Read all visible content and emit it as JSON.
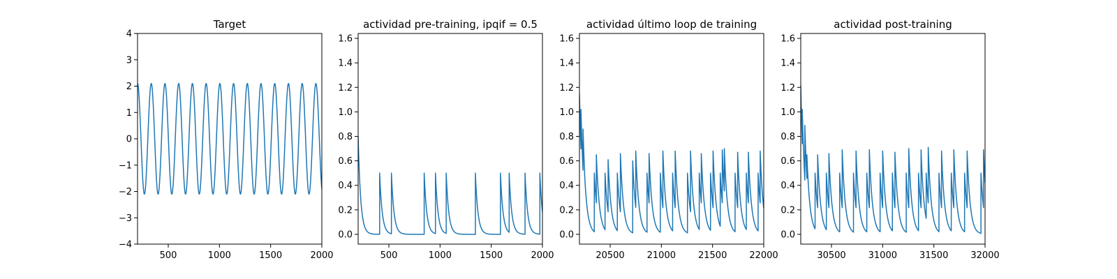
{
  "chart_data": [
    {
      "type": "line",
      "title": "Target",
      "xlim": [
        200,
        2000
      ],
      "ylim": [
        -4,
        4
      ],
      "xticks": [
        500,
        1000,
        1500,
        2000
      ],
      "xtick_labels": [
        "500",
        "1000",
        "1500",
        "2000"
      ],
      "yticks": [
        -4,
        -3,
        -2,
        -1,
        0,
        1,
        2,
        3,
        4
      ],
      "ytick_labels": [
        "−4",
        "−3",
        "−2",
        "−1",
        "0",
        "1",
        "2",
        "3",
        "4"
      ],
      "series": [
        {
          "color": "#1f77b4",
          "kind": "sine",
          "amplitude": 2.1,
          "period": 134,
          "phase_peak_x": 200,
          "x_start": 200,
          "x_end": 2000
        }
      ]
    },
    {
      "type": "line",
      "title": "actividad pre-training, ipqif = 0.5",
      "xlim": [
        200,
        2000
      ],
      "ylim": [
        -0.08,
        1.64
      ],
      "xticks": [
        500,
        1000,
        1500,
        2000
      ],
      "xtick_labels": [
        "500",
        "1000",
        "1500",
        "2000"
      ],
      "yticks": [
        0,
        0.2,
        0.4,
        0.6,
        0.8,
        1.0,
        1.2,
        1.4,
        1.6
      ],
      "ytick_labels": [
        "0.0",
        "0.2",
        "0.4",
        "0.6",
        "0.8",
        "1.0",
        "1.2",
        "1.4",
        "1.6"
      ],
      "series": [
        {
          "color": "#1f77b4",
          "kind": "spikes",
          "x_start": 200,
          "x_end": 2000,
          "initial": 0.8,
          "tau": 25,
          "events": [
            {
              "x": 410,
              "v": 0.5
            },
            {
              "x": 525,
              "v": 0.5
            },
            {
              "x": 845,
              "v": 0.5
            },
            {
              "x": 955,
              "v": 0.5
            },
            {
              "x": 1060,
              "v": 0.5
            },
            {
              "x": 1345,
              "v": 0.5
            },
            {
              "x": 1590,
              "v": 0.5
            },
            {
              "x": 1675,
              "v": 0.5
            },
            {
              "x": 1830,
              "v": 0.5
            },
            {
              "x": 1975,
              "v": 0.5
            }
          ]
        }
      ]
    },
    {
      "type": "line",
      "title": "actividad último loop de training",
      "xlim": [
        20200,
        22000
      ],
      "ylim": [
        -0.08,
        1.64
      ],
      "xticks": [
        20500,
        21000,
        21500,
        22000
      ],
      "xtick_labels": [
        "20500",
        "21000",
        "21500",
        "22000"
      ],
      "yticks": [
        0,
        0.2,
        0.4,
        0.6,
        0.8,
        1.0,
        1.2,
        1.4,
        1.6
      ],
      "ytick_labels": [
        "0.0",
        "0.2",
        "0.4",
        "0.6",
        "0.8",
        "1.0",
        "1.2",
        "1.4",
        "1.6"
      ],
      "series": [
        {
          "color": "#1f77b4",
          "kind": "spikes",
          "x_start": 20200,
          "x_end": 22000,
          "initial": 1.15,
          "tau": 30,
          "events": [
            {
              "x": 20215,
              "v": 1.02
            },
            {
              "x": 20235,
              "v": 0.86
            },
            {
              "x": 20250,
              "v": 0.5
            },
            {
              "x": 20345,
              "v": 0.5
            },
            {
              "x": 20365,
              "v": 0.65
            },
            {
              "x": 20450,
              "v": 0.5
            },
            {
              "x": 20480,
              "v": 0.61
            },
            {
              "x": 20570,
              "v": 0.5
            },
            {
              "x": 20600,
              "v": 0.66
            },
            {
              "x": 20720,
              "v": 0.6
            },
            {
              "x": 20750,
              "v": 0.68
            },
            {
              "x": 20860,
              "v": 0.5
            },
            {
              "x": 20880,
              "v": 0.66
            },
            {
              "x": 20990,
              "v": 0.5
            },
            {
              "x": 21015,
              "v": 0.68
            },
            {
              "x": 21110,
              "v": 0.5
            },
            {
              "x": 21135,
              "v": 0.68
            },
            {
              "x": 21255,
              "v": 0.5
            },
            {
              "x": 21285,
              "v": 0.68
            },
            {
              "x": 21370,
              "v": 0.5
            },
            {
              "x": 21390,
              "v": 0.66
            },
            {
              "x": 21480,
              "v": 0.5
            },
            {
              "x": 21505,
              "v": 0.68
            },
            {
              "x": 21575,
              "v": 0.5
            },
            {
              "x": 21595,
              "v": 0.69
            },
            {
              "x": 21615,
              "v": 0.7
            },
            {
              "x": 21720,
              "v": 0.5
            },
            {
              "x": 21745,
              "v": 0.67
            },
            {
              "x": 21830,
              "v": 0.5
            },
            {
              "x": 21850,
              "v": 0.67
            },
            {
              "x": 21945,
              "v": 0.5
            },
            {
              "x": 21965,
              "v": 0.68
            }
          ]
        }
      ]
    },
    {
      "type": "line",
      "title": "actividad post-training",
      "xlim": [
        30200,
        32000
      ],
      "ylim": [
        -0.08,
        1.64
      ],
      "xticks": [
        30500,
        31000,
        31500,
        32000
      ],
      "xtick_labels": [
        "30500",
        "31000",
        "31500",
        "32000"
      ],
      "yticks": [
        0,
        0.2,
        0.4,
        0.6,
        0.8,
        1.0,
        1.2,
        1.4,
        1.6
      ],
      "ytick_labels": [
        "0.0",
        "0.2",
        "0.4",
        "0.6",
        "0.8",
        "1.0",
        "1.2",
        "1.4",
        "1.6"
      ],
      "series": [
        {
          "color": "#1f77b4",
          "kind": "spikes",
          "x_start": 30200,
          "x_end": 32000,
          "initial": 1.22,
          "tau": 30,
          "events": [
            {
              "x": 30215,
              "v": 1.02
            },
            {
              "x": 30240,
              "v": 0.89
            },
            {
              "x": 30260,
              "v": 0.65
            },
            {
              "x": 30340,
              "v": 0.5
            },
            {
              "x": 30365,
              "v": 0.65
            },
            {
              "x": 30450,
              "v": 0.5
            },
            {
              "x": 30475,
              "v": 0.66
            },
            {
              "x": 30580,
              "v": 0.5
            },
            {
              "x": 30605,
              "v": 0.69
            },
            {
              "x": 30715,
              "v": 0.5
            },
            {
              "x": 30740,
              "v": 0.68
            },
            {
              "x": 30845,
              "v": 0.5
            },
            {
              "x": 30870,
              "v": 0.69
            },
            {
              "x": 30975,
              "v": 0.5
            },
            {
              "x": 31000,
              "v": 0.68
            },
            {
              "x": 31095,
              "v": 0.5
            },
            {
              "x": 31120,
              "v": 0.67
            },
            {
              "x": 31230,
              "v": 0.5
            },
            {
              "x": 31255,
              "v": 0.7
            },
            {
              "x": 31350,
              "v": 0.5
            },
            {
              "x": 31375,
              "v": 0.69
            },
            {
              "x": 31425,
              "v": 0.5
            },
            {
              "x": 31445,
              "v": 0.71
            },
            {
              "x": 31550,
              "v": 0.5
            },
            {
              "x": 31575,
              "v": 0.68
            },
            {
              "x": 31670,
              "v": 0.5
            },
            {
              "x": 31695,
              "v": 0.69
            },
            {
              "x": 31800,
              "v": 0.5
            },
            {
              "x": 31825,
              "v": 0.68
            },
            {
              "x": 31960,
              "v": 0.5
            },
            {
              "x": 31985,
              "v": 0.69
            }
          ]
        }
      ]
    }
  ]
}
